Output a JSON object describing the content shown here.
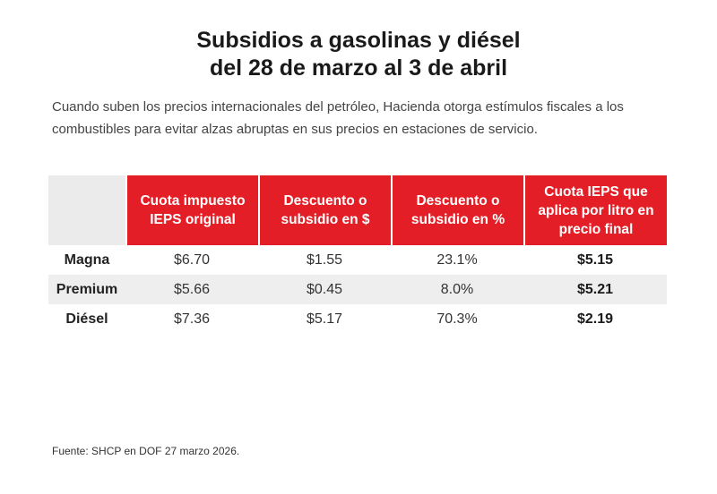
{
  "title": {
    "line1": "Subsidios a gasolinas y diésel",
    "line2": "del 28 de marzo al 3 de abril"
  },
  "intro": "Cuando suben los precios internacionales del petróleo, Hacienda otorga estímulos fiscales a los combustibles para evitar alzas abruptas en sus precios en estaciones de servicio.",
  "table": {
    "headers": [
      "",
      "Cuota impuesto IEPS original",
      "Descuento o subsidio en $",
      "Descuento o subsidio en %",
      "Cuota IEPS que aplica por litro en precio final"
    ],
    "rows": [
      [
        "Magna",
        "$6.70",
        "$1.55",
        "23.1%",
        "$5.15"
      ],
      [
        "Premium",
        "$5.66",
        "$0.45",
        "8.0%",
        "$5.21"
      ],
      [
        "Diésel",
        "$7.36",
        "$5.17",
        "70.3%",
        "$2.19"
      ]
    ]
  },
  "source": "Fuente: SHCP en DOF 27 marzo 2026.",
  "colors": {
    "header_red": "#e41e26",
    "row_shade": "#eeeeee",
    "corner_gray": "#ebebeb"
  }
}
